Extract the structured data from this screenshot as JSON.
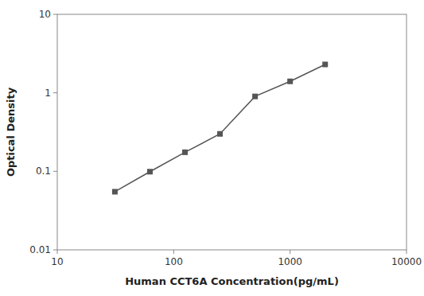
{
  "chart_data": {
    "type": "line",
    "xlabel": "Human CCT6A Concentration(pg/mL)",
    "ylabel": "Optical Density",
    "x": [
      31.25,
      62.5,
      125,
      250,
      500,
      1000,
      2000
    ],
    "values": [
      0.055,
      0.099,
      0.175,
      0.3,
      0.9,
      1.4,
      2.3
    ],
    "xlim": [
      10,
      10000
    ],
    "ylim": [
      0.01,
      10
    ],
    "xticks": [
      10,
      100,
      1000,
      10000
    ],
    "yticks": [
      0.01,
      0.1,
      1,
      10
    ],
    "log": true,
    "grid": false,
    "color": "#555555",
    "marker": "square",
    "line_style": "solid"
  }
}
